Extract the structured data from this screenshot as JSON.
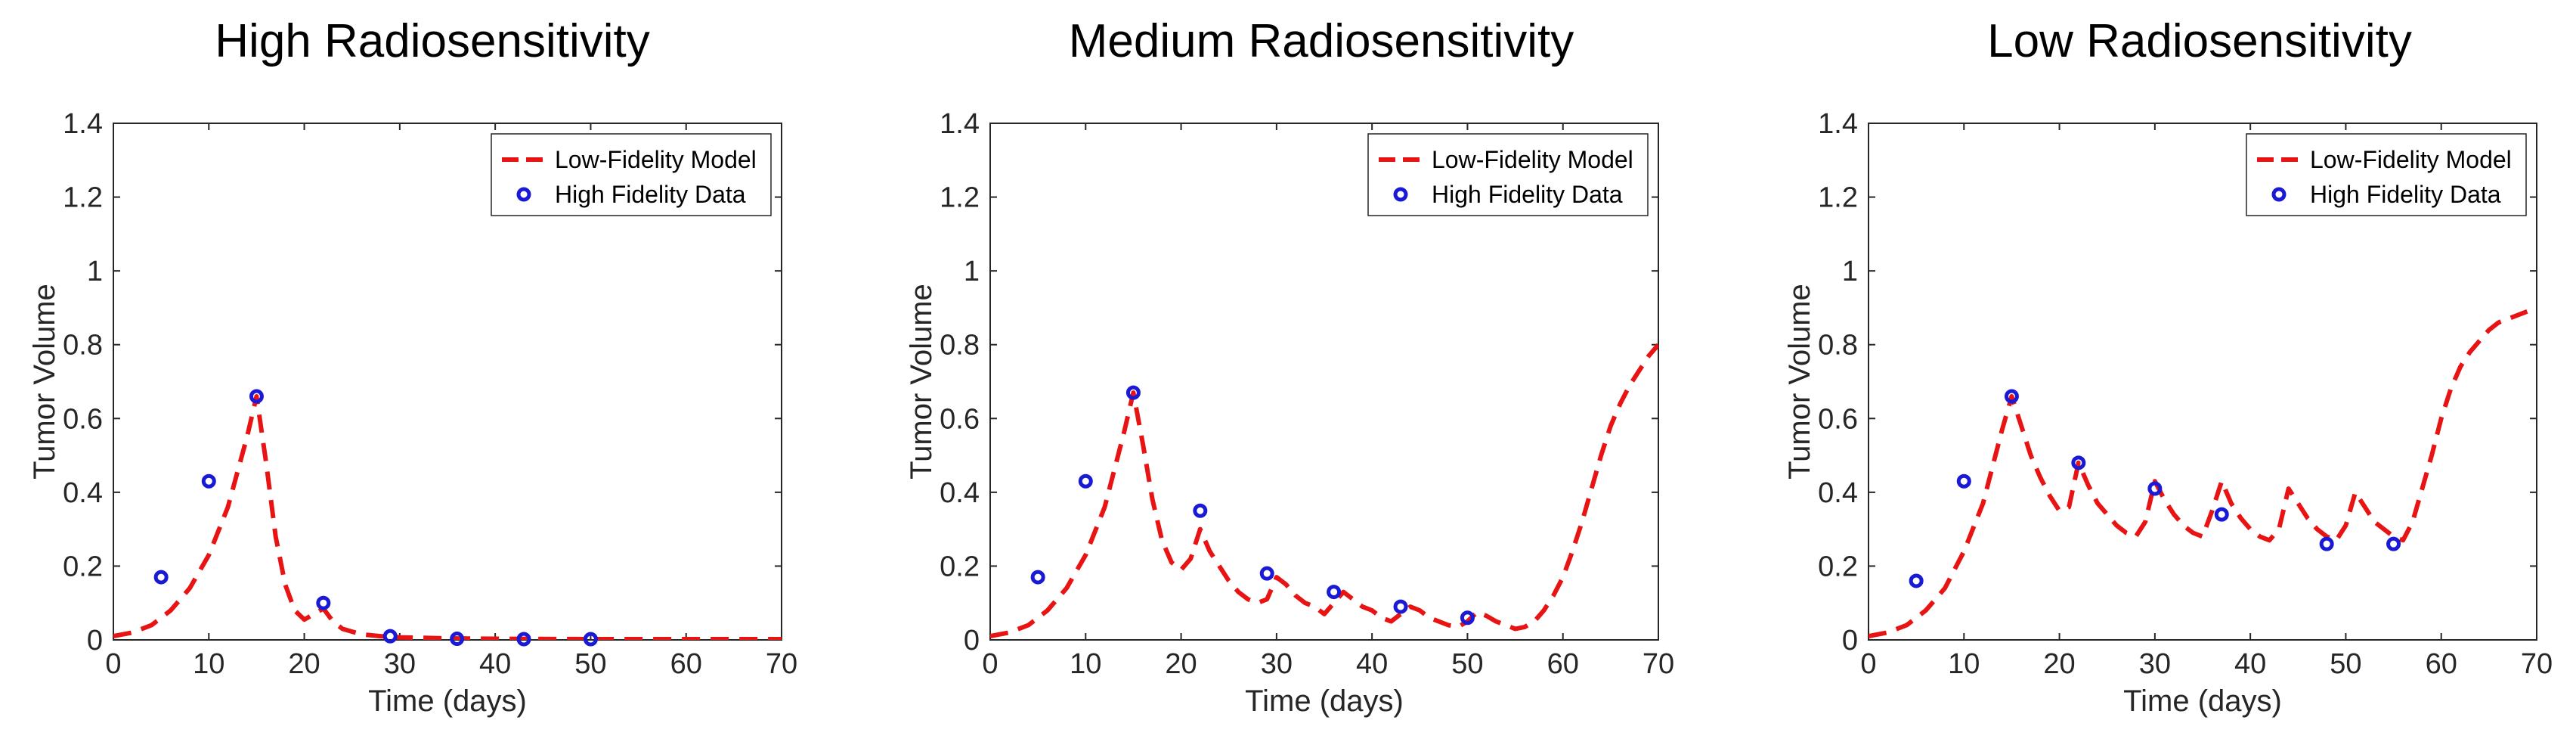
{
  "colors": {
    "model": "#e81414",
    "data_marker": "#1a1ad6",
    "axis": "#262626",
    "background": "#ffffff"
  },
  "chart_data": [
    {
      "type": "line",
      "title": "High Radiosensitivity",
      "xlabel": "Time (days)",
      "ylabel": "Tumor Volume",
      "xlim": [
        0,
        70
      ],
      "ylim": [
        0,
        1.4
      ],
      "xticks": [
        "0",
        "10",
        "20",
        "30",
        "40",
        "50",
        "60",
        "70"
      ],
      "yticks": [
        "0",
        "0.2",
        "0.4",
        "0.6",
        "0.8",
        "1",
        "1.2",
        "1.4"
      ],
      "legend": {
        "position": "top-right",
        "entries": [
          "Low-Fidelity Model",
          "High Fidelity Data"
        ]
      },
      "series": [
        {
          "name": "Low-Fidelity Model",
          "style": "dashed-line",
          "x": [
            0,
            2,
            4,
            6,
            8,
            10,
            12,
            14,
            15,
            16,
            17,
            18,
            19,
            20,
            21,
            22,
            23,
            24,
            26,
            28,
            30,
            35,
            40,
            50,
            60,
            70
          ],
          "y": [
            0.01,
            0.02,
            0.04,
            0.08,
            0.14,
            0.23,
            0.36,
            0.55,
            0.66,
            0.48,
            0.28,
            0.15,
            0.08,
            0.055,
            0.07,
            0.085,
            0.05,
            0.03,
            0.015,
            0.01,
            0.007,
            0.004,
            0.003,
            0.002,
            0.002,
            0.002
          ]
        },
        {
          "name": "High Fidelity Data",
          "style": "markers",
          "x": [
            5,
            10,
            15,
            22,
            29,
            36,
            43,
            50
          ],
          "y": [
            0.17,
            0.43,
            0.66,
            0.1,
            0.01,
            0.003,
            0.002,
            0.002
          ]
        }
      ]
    },
    {
      "type": "line",
      "title": "Medium Radiosensitivity",
      "xlabel": "Time (days)",
      "ylabel": "Tumor Volume",
      "xlim": [
        0,
        70
      ],
      "ylim": [
        0,
        1.4
      ],
      "xticks": [
        "0",
        "10",
        "20",
        "30",
        "40",
        "50",
        "60",
        "70"
      ],
      "yticks": [
        "0",
        "0.2",
        "0.4",
        "0.6",
        "0.8",
        "1",
        "1.2",
        "1.4"
      ],
      "legend": {
        "position": "top-right",
        "entries": [
          "Low-Fidelity Model",
          "High Fidelity Data"
        ]
      },
      "series": [
        {
          "name": "Low-Fidelity Model",
          "style": "dashed-line",
          "x": [
            0,
            2,
            4,
            6,
            8,
            10,
            12,
            14,
            15,
            16,
            17,
            18,
            19,
            20,
            21,
            22,
            23,
            24,
            25,
            26,
            27,
            28,
            29,
            30,
            31,
            32,
            33,
            34,
            35,
            36,
            37,
            38,
            39,
            40,
            41,
            42,
            43,
            44,
            45,
            46,
            47,
            48,
            49,
            50,
            51,
            52,
            53,
            54,
            55,
            56,
            57,
            58,
            59,
            60,
            61,
            62,
            63,
            64,
            65,
            66,
            67,
            68,
            69,
            70
          ],
          "y": [
            0.01,
            0.02,
            0.04,
            0.08,
            0.14,
            0.23,
            0.36,
            0.56,
            0.67,
            0.53,
            0.38,
            0.27,
            0.21,
            0.19,
            0.22,
            0.3,
            0.24,
            0.2,
            0.16,
            0.13,
            0.11,
            0.1,
            0.11,
            0.17,
            0.15,
            0.12,
            0.1,
            0.09,
            0.07,
            0.1,
            0.13,
            0.11,
            0.09,
            0.08,
            0.06,
            0.05,
            0.07,
            0.09,
            0.08,
            0.06,
            0.05,
            0.04,
            0.035,
            0.05,
            0.075,
            0.065,
            0.05,
            0.04,
            0.03,
            0.035,
            0.05,
            0.08,
            0.12,
            0.17,
            0.24,
            0.32,
            0.41,
            0.5,
            0.58,
            0.64,
            0.69,
            0.73,
            0.77,
            0.8
          ]
        },
        {
          "name": "High Fidelity Data",
          "style": "markers",
          "x": [
            5,
            10,
            15,
            22,
            29,
            36,
            43,
            50
          ],
          "y": [
            0.17,
            0.43,
            0.67,
            0.35,
            0.18,
            0.13,
            0.09,
            0.06
          ]
        }
      ]
    },
    {
      "type": "line",
      "title": "Low Radiosensitivity",
      "xlabel": "Time (days)",
      "ylabel": "Tumor Volume",
      "xlim": [
        0,
        70
      ],
      "ylim": [
        0,
        1.4
      ],
      "xticks": [
        "0",
        "10",
        "20",
        "30",
        "40",
        "50",
        "60",
        "70"
      ],
      "yticks": [
        "0",
        "0.2",
        "0.4",
        "0.6",
        "0.8",
        "1",
        "1.2",
        "1.4"
      ],
      "legend": {
        "position": "top-right",
        "entries": [
          "Low-Fidelity Model",
          "High Fidelity Data"
        ]
      },
      "series": [
        {
          "name": "Low-Fidelity Model",
          "style": "dashed-line",
          "x": [
            0,
            2,
            4,
            6,
            8,
            10,
            12,
            14,
            15,
            16,
            17,
            18,
            19,
            20,
            21,
            22,
            23,
            24,
            25,
            26,
            27,
            28,
            29,
            30,
            31,
            32,
            33,
            34,
            35,
            36,
            37,
            38,
            39,
            40,
            41,
            42,
            43,
            44,
            45,
            46,
            47,
            48,
            49,
            50,
            51,
            52,
            53,
            54,
            55,
            56,
            57,
            58,
            59,
            60,
            61,
            62,
            63,
            64,
            65,
            66,
            67,
            68,
            69
          ],
          "y": [
            0.01,
            0.02,
            0.04,
            0.08,
            0.14,
            0.24,
            0.37,
            0.57,
            0.66,
            0.58,
            0.5,
            0.44,
            0.39,
            0.35,
            0.36,
            0.48,
            0.42,
            0.37,
            0.34,
            0.31,
            0.29,
            0.28,
            0.32,
            0.43,
            0.38,
            0.34,
            0.31,
            0.29,
            0.28,
            0.35,
            0.43,
            0.37,
            0.33,
            0.3,
            0.28,
            0.27,
            0.3,
            0.41,
            0.37,
            0.33,
            0.3,
            0.28,
            0.27,
            0.31,
            0.4,
            0.36,
            0.32,
            0.3,
            0.28,
            0.27,
            0.32,
            0.41,
            0.5,
            0.6,
            0.68,
            0.74,
            0.78,
            0.81,
            0.84,
            0.86,
            0.87,
            0.88,
            0.89
          ]
        },
        {
          "name": "High Fidelity Data",
          "style": "markers",
          "x": [
            5,
            10,
            15,
            22,
            30,
            37,
            48,
            55
          ],
          "y": [
            0.16,
            0.43,
            0.66,
            0.48,
            0.41,
            0.34,
            0.26,
            0.26
          ]
        }
      ]
    }
  ]
}
